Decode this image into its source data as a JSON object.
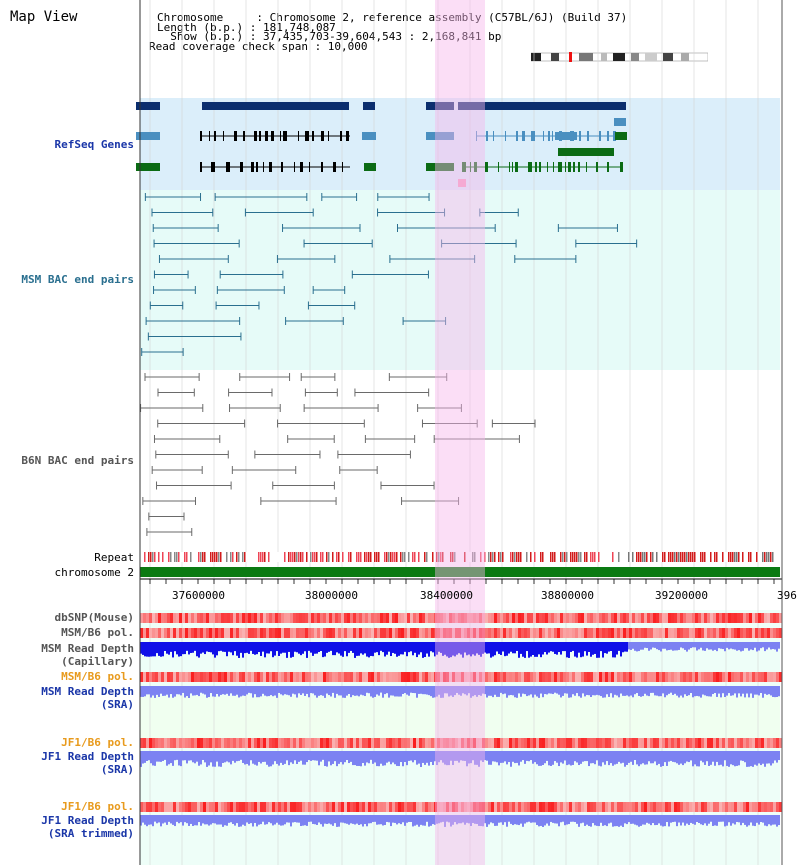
{
  "header": {
    "title": "Map View",
    "info_lines": [
      "Chromosome     : Chromosome 2, reference assembly (C57BL/6J) (Build 37)",
      "Length (b.p.) : 181,748,087",
      "  Show (b.p.) : 37,435,703-39,604,543 : 2,168,841 bp",
      "Read coverage check span : 10,000"
    ]
  },
  "tracks": {
    "refseq": "RefSeq Genes",
    "msm_bac": "MSM BAC end pairs",
    "b6n_bac": "B6N BAC end pairs",
    "repeat": "Repeat",
    "chromosome": "chromosome 2",
    "dbsnp": "dbSNP(Mouse)",
    "msm_b6_pol": "MSM/B6 pol.",
    "msm_depth_cap_1": "MSM Read Depth",
    "msm_depth_cap_2": "(Capillary)",
    "msm_b6_pol_2": "MSM/B6 pol.",
    "msm_depth_sra_1": "MSM Read Depth",
    "msm_depth_sra_2": "(SRA)",
    "jf1_b6_pol_1": "JF1/B6 pol.",
    "jf1_depth_sra_1": "JF1 Read Depth",
    "jf1_depth_sra_2": "(SRA)",
    "jf1_b6_pol_2": "JF1/B6 pol.",
    "jf1_depth_trim_1": "JF1 Read Depth",
    "jf1_depth_trim_2": "(SRA trimmed)"
  },
  "ruler": {
    "ticks": [
      "37600000",
      "38000000",
      "38400000",
      "38800000",
      "39200000",
      "396"
    ]
  },
  "colors": {
    "refseq_bg": "#dbeefa",
    "msm_bg": "#e6fbf8",
    "b6n_bg": "#ffffff",
    "selection": "#f8c8ee",
    "gene_navy": "#0b2e6e",
    "gene_blue": "#4a8fc0",
    "gene_green": "#0b6b14",
    "msm_pair": "#2a6f8f",
    "b6n_pair": "#6a6a6a",
    "repeat_red": "#d21b1b",
    "chrom_green": "#0b7a12",
    "depth_dark": "#1010e8",
    "depth_light": "#7c82f2"
  }
}
